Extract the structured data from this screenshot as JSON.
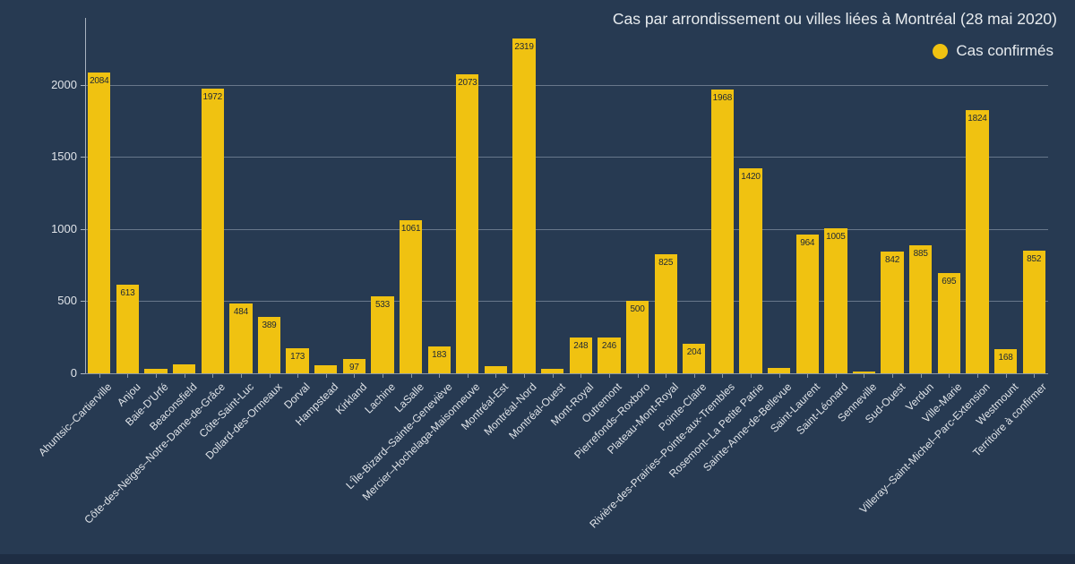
{
  "page": {
    "background_color": "#273a52",
    "bottom_strip_color": "#1e2d43"
  },
  "chart_data": {
    "type": "bar",
    "title": "Cas par arrondissement ou villes liées à Montréal (28 mai 2020)",
    "legend": {
      "label": "Cas confirmés",
      "position": "top-right",
      "marker": "circle-icon",
      "marker_color": "#f0c211"
    },
    "series_name": "Cas confirmés",
    "categories": [
      "Ahuntsic–Cartierville",
      "Anjou",
      "Baie-D'Urfé",
      "Beaconsfield",
      "Côte-des-Neiges–Notre-Dame-de-Grâce",
      "Côte-Saint-Luc",
      "Dollard-des-Ormeaux",
      "Dorval",
      "Hampstead",
      "Kirkland",
      "Lachine",
      "LaSalle",
      "L'Île-Bizard–Sainte-Geneviève",
      "Mercier–Hochelaga-Maisonneuve",
      "Montréal-Est",
      "Montréal-Nord",
      "Montréal-Ouest",
      "Mont-Royal",
      "Outremont",
      "Pierrefonds–Roxboro",
      "Plateau-Mont-Royal",
      "Pointe-Claire",
      "Rivière-des-Prairies–Pointe-aux-Trembles",
      "Rosemont–La Petite Patrie",
      "Sainte-Anne-de-Bellevue",
      "Saint-Laurent",
      "Saint-Léonard",
      "Senneville",
      "Sud-Ouest",
      "Verdun",
      "Ville-Marie",
      "Villeray–Saint-Michel–Parc-Extension",
      "Westmount",
      "Territoire à confirmer"
    ],
    "values": [
      2084,
      613,
      30,
      62,
      1972,
      484,
      389,
      173,
      55,
      97,
      533,
      1061,
      183,
      2073,
      48,
      2319,
      28,
      248,
      246,
      500,
      825,
      204,
      1968,
      1420,
      36,
      964,
      1005,
      15,
      842,
      885,
      695,
      1824,
      168,
      852
    ],
    "bar_labels": [
      "2084",
      "613",
      null,
      null,
      "1972",
      "484",
      "389",
      "173",
      null,
      "97",
      "533",
      "1061",
      "183",
      "2073",
      null,
      "2319",
      null,
      "248",
      "246",
      "500",
      "825",
      "204",
      "1968",
      "1420",
      null,
      "964",
      "1005",
      null,
      "842",
      "885",
      "695",
      "1824",
      "168",
      "852"
    ],
    "xlabel": "",
    "ylabel": "",
    "ylim": [
      0,
      2400
    ],
    "yticks": [
      0,
      500,
      1000,
      1500,
      2000
    ],
    "grid": true,
    "bar_color": "#f0c211",
    "value_label_color": "#1d2737",
    "axis_text_color": "#dfe3e8",
    "grid_color": "rgba(185,196,208,0.45)"
  }
}
